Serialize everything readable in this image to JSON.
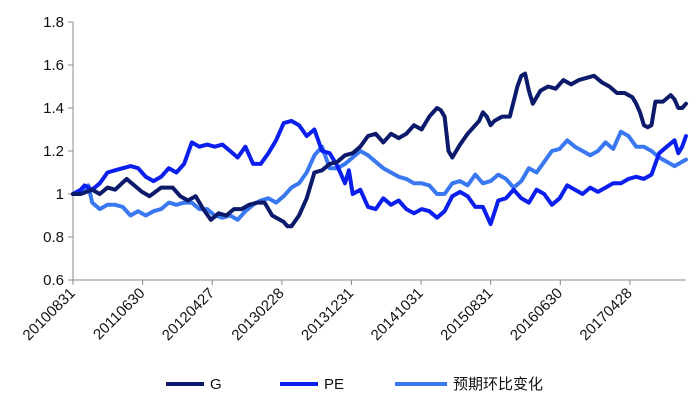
{
  "chart_data": {
    "type": "line",
    "x_ticks": [
      "20100831",
      "20110630",
      "20120427",
      "20130228",
      "20131231",
      "20141031",
      "20150831",
      "20160630",
      "20170428"
    ],
    "ylim": [
      0.6,
      1.8
    ],
    "yticks": [
      0.6,
      0.8,
      1,
      1.2,
      1.4,
      1.6,
      1.8
    ],
    "ytick_labels": [
      "0.6",
      "0.8",
      "1",
      "1.2",
      "1.4",
      "1.6",
      "1.8"
    ],
    "grid": false,
    "legend_position": "bottom",
    "series": [
      {
        "name": "G",
        "color": "#0b1a6b",
        "points": [
          [
            0,
            1.0
          ],
          [
            2,
            1.0
          ],
          [
            5,
            1.02
          ],
          [
            7,
            1.0
          ],
          [
            9,
            1.03
          ],
          [
            11,
            1.02
          ],
          [
            14,
            1.07
          ],
          [
            18,
            1.01
          ],
          [
            20,
            0.99
          ],
          [
            23,
            1.03
          ],
          [
            26,
            1.03
          ],
          [
            28,
            0.99
          ],
          [
            30,
            0.97
          ],
          [
            32,
            0.99
          ],
          [
            34,
            0.93
          ],
          [
            36,
            0.88
          ],
          [
            38,
            0.91
          ],
          [
            40,
            0.9
          ],
          [
            42,
            0.93
          ],
          [
            44,
            0.93
          ],
          [
            46,
            0.95
          ],
          [
            48,
            0.96
          ],
          [
            50,
            0.96
          ],
          [
            52,
            0.9
          ],
          [
            54,
            0.88
          ],
          [
            55,
            0.87
          ],
          [
            56,
            0.85
          ],
          [
            57,
            0.85
          ],
          [
            59,
            0.9
          ],
          [
            61,
            0.98
          ],
          [
            63,
            1.1
          ],
          [
            65,
            1.11
          ],
          [
            67,
            1.14
          ],
          [
            69,
            1.15
          ],
          [
            71,
            1.18
          ],
          [
            73,
            1.19
          ],
          [
            75,
            1.22
          ],
          [
            77,
            1.27
          ],
          [
            79,
            1.28
          ],
          [
            81,
            1.24
          ],
          [
            83,
            1.28
          ],
          [
            85,
            1.26
          ],
          [
            87,
            1.28
          ],
          [
            89,
            1.32
          ],
          [
            91,
            1.3
          ],
          [
            93,
            1.36
          ],
          [
            95,
            1.4
          ],
          [
            96,
            1.39
          ],
          [
            97,
            1.36
          ],
          [
            98,
            1.2
          ],
          [
            99,
            1.17
          ],
          [
            101,
            1.23
          ],
          [
            103,
            1.28
          ],
          [
            105,
            1.32
          ],
          [
            106,
            1.34
          ],
          [
            107,
            1.38
          ],
          [
            108,
            1.36
          ],
          [
            109,
            1.32
          ],
          [
            110,
            1.34
          ],
          [
            112,
            1.36
          ],
          [
            114,
            1.36
          ],
          [
            115,
            1.43
          ],
          [
            116,
            1.5
          ],
          [
            117,
            1.55
          ],
          [
            118,
            1.56
          ],
          [
            119,
            1.48
          ],
          [
            120,
            1.42
          ],
          [
            122,
            1.48
          ],
          [
            124,
            1.5
          ],
          [
            126,
            1.49
          ],
          [
            128,
            1.53
          ],
          [
            130,
            1.51
          ],
          [
            132,
            1.53
          ],
          [
            134,
            1.54
          ],
          [
            136,
            1.55
          ],
          [
            138,
            1.52
          ],
          [
            140,
            1.5
          ],
          [
            142,
            1.47
          ],
          [
            144,
            1.47
          ],
          [
            146,
            1.45
          ],
          [
            147,
            1.42
          ],
          [
            148,
            1.38
          ],
          [
            149,
            1.32
          ],
          [
            150,
            1.31
          ],
          [
            151,
            1.32
          ],
          [
            152,
            1.43
          ],
          [
            154,
            1.43
          ],
          [
            156,
            1.46
          ],
          [
            157,
            1.44
          ],
          [
            158,
            1.4
          ],
          [
            159,
            1.4
          ],
          [
            160,
            1.42
          ]
        ]
      },
      {
        "name": "PE",
        "color": "#0a1fee",
        "points": [
          [
            0,
            1.0
          ],
          [
            2,
            1.02
          ],
          [
            3,
            1.04
          ],
          [
            5,
            1.02
          ],
          [
            7,
            1.05
          ],
          [
            9,
            1.1
          ],
          [
            11,
            1.11
          ],
          [
            13,
            1.12
          ],
          [
            15,
            1.13
          ],
          [
            17,
            1.12
          ],
          [
            19,
            1.08
          ],
          [
            21,
            1.06
          ],
          [
            23,
            1.08
          ],
          [
            25,
            1.12
          ],
          [
            27,
            1.1
          ],
          [
            29,
            1.14
          ],
          [
            31,
            1.24
          ],
          [
            33,
            1.22
          ],
          [
            35,
            1.23
          ],
          [
            37,
            1.22
          ],
          [
            39,
            1.23
          ],
          [
            41,
            1.2
          ],
          [
            43,
            1.17
          ],
          [
            45,
            1.22
          ],
          [
            47,
            1.14
          ],
          [
            49,
            1.14
          ],
          [
            51,
            1.19
          ],
          [
            53,
            1.25
          ],
          [
            55,
            1.33
          ],
          [
            57,
            1.34
          ],
          [
            59,
            1.32
          ],
          [
            61,
            1.27
          ],
          [
            63,
            1.3
          ],
          [
            65,
            1.2
          ],
          [
            67,
            1.19
          ],
          [
            69,
            1.13
          ],
          [
            71,
            1.05
          ],
          [
            72,
            1.11
          ],
          [
            73,
            1.0
          ],
          [
            75,
            1.02
          ],
          [
            77,
            0.94
          ],
          [
            79,
            0.93
          ],
          [
            81,
            0.98
          ],
          [
            83,
            0.95
          ],
          [
            85,
            0.97
          ],
          [
            87,
            0.93
          ],
          [
            89,
            0.91
          ],
          [
            91,
            0.93
          ],
          [
            93,
            0.92
          ],
          [
            95,
            0.89
          ],
          [
            97,
            0.92
          ],
          [
            99,
            0.99
          ],
          [
            101,
            1.01
          ],
          [
            103,
            0.99
          ],
          [
            105,
            0.94
          ],
          [
            107,
            0.94
          ],
          [
            109,
            0.86
          ],
          [
            111,
            0.97
          ],
          [
            113,
            0.98
          ],
          [
            115,
            1.02
          ],
          [
            117,
            0.98
          ],
          [
            119,
            0.96
          ],
          [
            121,
            1.02
          ],
          [
            123,
            1.0
          ],
          [
            125,
            0.95
          ],
          [
            127,
            0.98
          ],
          [
            129,
            1.04
          ],
          [
            131,
            1.02
          ],
          [
            133,
            1.0
          ],
          [
            135,
            1.03
          ],
          [
            137,
            1.01
          ],
          [
            139,
            1.03
          ],
          [
            141,
            1.05
          ],
          [
            143,
            1.05
          ],
          [
            145,
            1.07
          ],
          [
            147,
            1.08
          ],
          [
            149,
            1.07
          ],
          [
            151,
            1.09
          ],
          [
            153,
            1.19
          ],
          [
            155,
            1.22
          ],
          [
            157,
            1.25
          ],
          [
            158,
            1.19
          ],
          [
            159,
            1.22
          ],
          [
            160,
            1.27
          ]
        ]
      },
      {
        "name": "预期环比变化",
        "color": "#3a78f2",
        "points": [
          [
            0,
            1.0
          ],
          [
            2,
            1.01
          ],
          [
            4,
            1.04
          ],
          [
            5,
            0.96
          ],
          [
            7,
            0.93
          ],
          [
            9,
            0.95
          ],
          [
            11,
            0.95
          ],
          [
            13,
            0.94
          ],
          [
            15,
            0.9
          ],
          [
            17,
            0.92
          ],
          [
            19,
            0.9
          ],
          [
            21,
            0.92
          ],
          [
            23,
            0.93
          ],
          [
            25,
            0.96
          ],
          [
            27,
            0.95
          ],
          [
            29,
            0.96
          ],
          [
            31,
            0.96
          ],
          [
            33,
            0.93
          ],
          [
            35,
            0.93
          ],
          [
            37,
            0.9
          ],
          [
            39,
            0.89
          ],
          [
            41,
            0.9
          ],
          [
            43,
            0.88
          ],
          [
            45,
            0.92
          ],
          [
            47,
            0.95
          ],
          [
            49,
            0.97
          ],
          [
            51,
            0.98
          ],
          [
            53,
            0.96
          ],
          [
            55,
            0.99
          ],
          [
            57,
            1.03
          ],
          [
            59,
            1.05
          ],
          [
            61,
            1.1
          ],
          [
            63,
            1.18
          ],
          [
            65,
            1.22
          ],
          [
            67,
            1.12
          ],
          [
            69,
            1.12
          ],
          [
            71,
            1.14
          ],
          [
            73,
            1.17
          ],
          [
            75,
            1.2
          ],
          [
            77,
            1.18
          ],
          [
            79,
            1.15
          ],
          [
            81,
            1.12
          ],
          [
            83,
            1.1
          ],
          [
            85,
            1.08
          ],
          [
            87,
            1.07
          ],
          [
            89,
            1.05
          ],
          [
            91,
            1.05
          ],
          [
            93,
            1.04
          ],
          [
            95,
            1.0
          ],
          [
            97,
            1.0
          ],
          [
            99,
            1.05
          ],
          [
            101,
            1.06
          ],
          [
            103,
            1.04
          ],
          [
            105,
            1.09
          ],
          [
            107,
            1.05
          ],
          [
            109,
            1.06
          ],
          [
            111,
            1.09
          ],
          [
            113,
            1.07
          ],
          [
            115,
            1.03
          ],
          [
            117,
            1.06
          ],
          [
            119,
            1.12
          ],
          [
            121,
            1.1
          ],
          [
            123,
            1.15
          ],
          [
            125,
            1.2
          ],
          [
            127,
            1.21
          ],
          [
            129,
            1.25
          ],
          [
            131,
            1.22
          ],
          [
            133,
            1.2
          ],
          [
            135,
            1.18
          ],
          [
            137,
            1.2
          ],
          [
            139,
            1.24
          ],
          [
            141,
            1.21
          ],
          [
            143,
            1.29
          ],
          [
            145,
            1.27
          ],
          [
            147,
            1.22
          ],
          [
            149,
            1.22
          ],
          [
            151,
            1.2
          ],
          [
            153,
            1.17
          ],
          [
            155,
            1.15
          ],
          [
            157,
            1.13
          ],
          [
            159,
            1.15
          ],
          [
            160,
            1.16
          ]
        ]
      }
    ]
  }
}
